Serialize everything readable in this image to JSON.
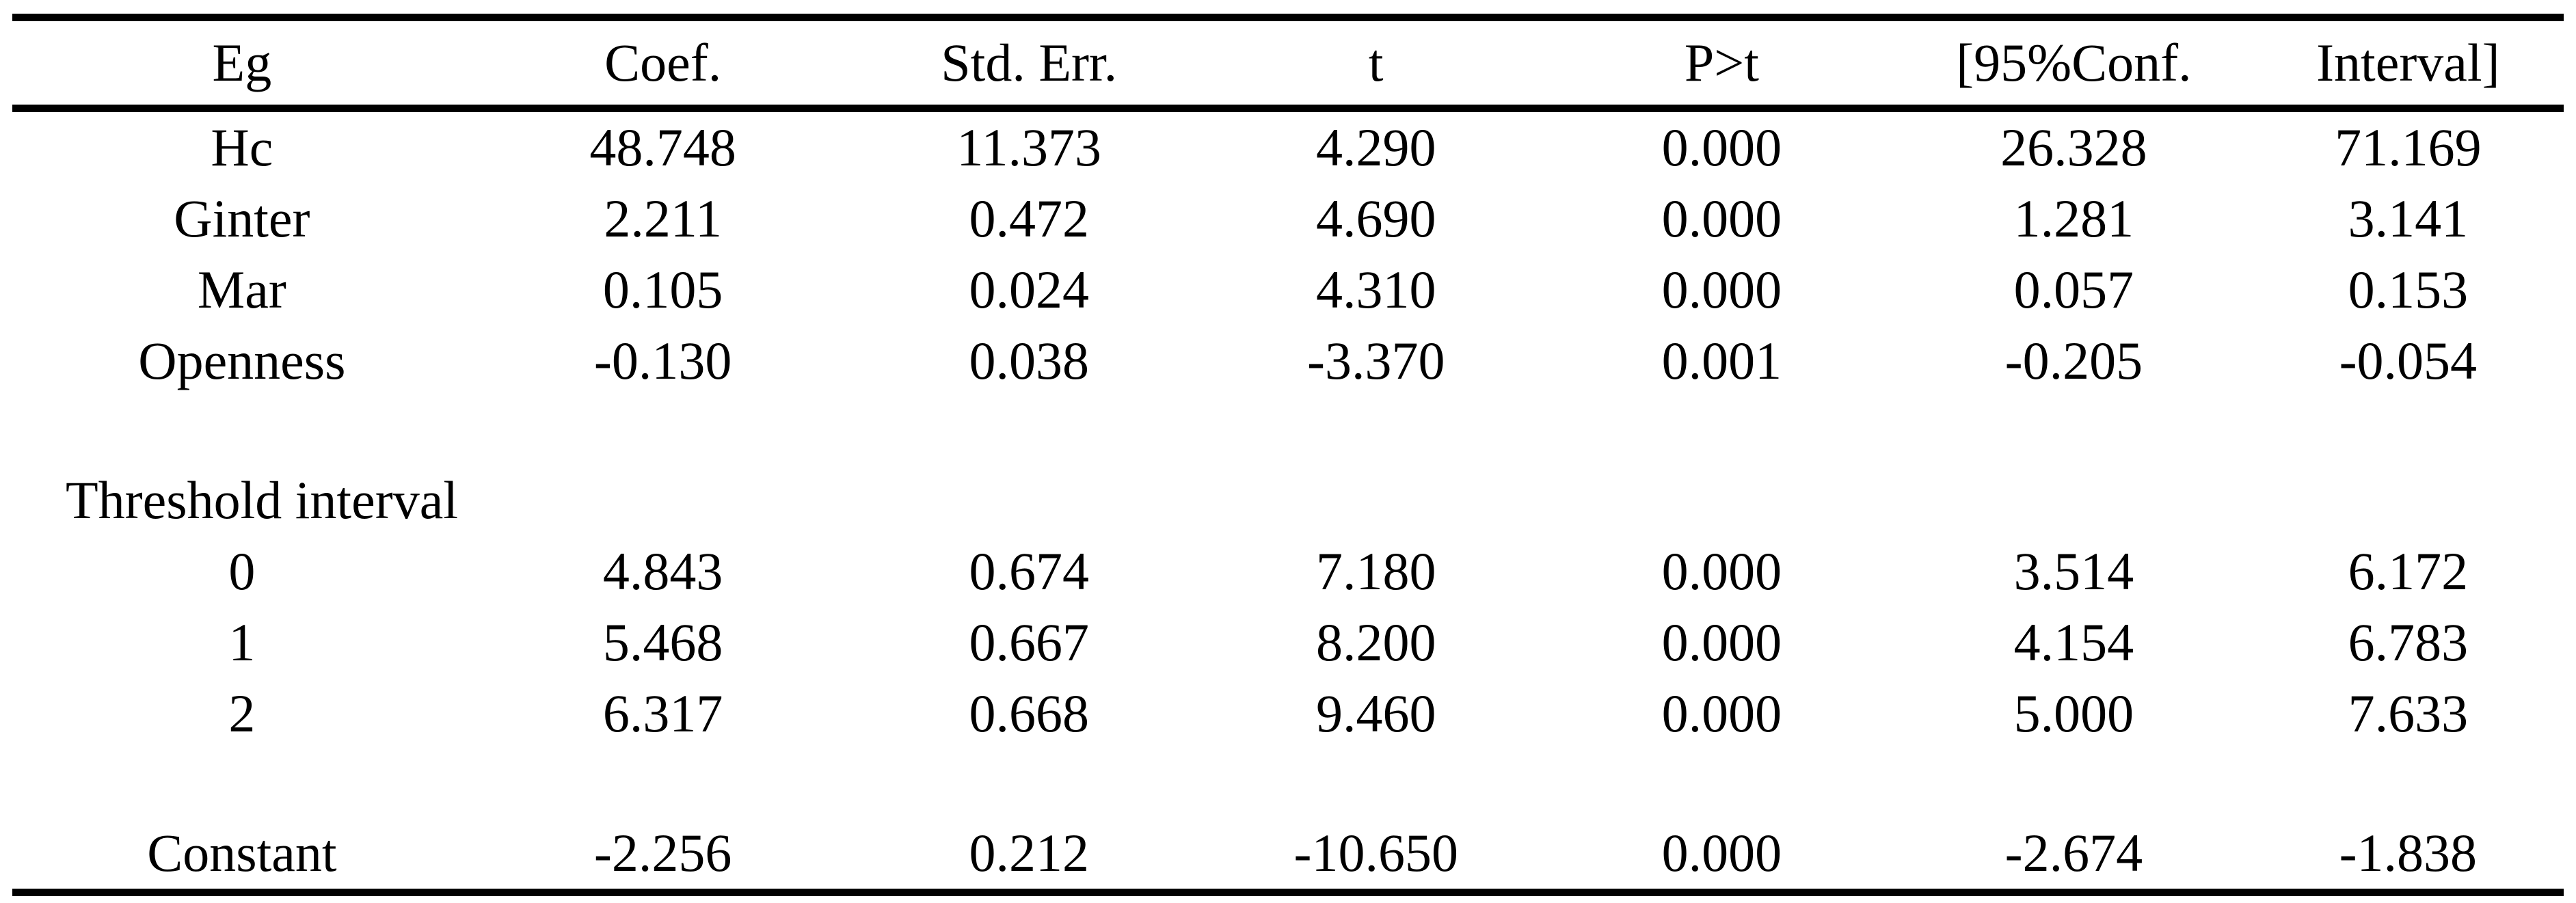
{
  "page": {
    "background": "#ffffff",
    "text_color": "#000000",
    "rule_color": "#000000"
  },
  "table": {
    "columns": [
      "Eg",
      "Coef.",
      "Std. Err.",
      "t",
      "P>t",
      "[95%Conf.",
      "Interval]"
    ],
    "rows": [
      {
        "style": "data",
        "cells": [
          "Hc",
          "48.748",
          "11.373",
          "4.290",
          "0.000",
          "26.328",
          "71.169"
        ]
      },
      {
        "style": "data",
        "cells": [
          "Ginter",
          "2.211",
          "0.472",
          "4.690",
          "0.000",
          "1.281",
          "3.141"
        ]
      },
      {
        "style": "data",
        "cells": [
          "Mar",
          "0.105",
          "0.024",
          "4.310",
          "0.000",
          "0.057",
          "0.153"
        ]
      },
      {
        "style": "data",
        "cells": [
          "Openness",
          "-0.130",
          "0.038",
          "-3.370",
          "0.001",
          "-0.205",
          "-0.054"
        ]
      },
      {
        "style": "blank",
        "cells": [
          "",
          "",
          "",
          "",
          "",
          "",
          ""
        ]
      },
      {
        "style": "section",
        "cells": [
          "Threshold interval",
          "",
          "",
          "",
          "",
          "",
          ""
        ]
      },
      {
        "style": "data",
        "cells": [
          "0",
          "4.843",
          "0.674",
          "7.180",
          "0.000",
          "3.514",
          "6.172"
        ]
      },
      {
        "style": "data",
        "cells": [
          "1",
          "5.468",
          "0.667",
          "8.200",
          "0.000",
          "4.154",
          "6.783"
        ]
      },
      {
        "style": "data",
        "cells": [
          "2",
          "6.317",
          "0.668",
          "9.460",
          "0.000",
          "5.000",
          "7.633"
        ]
      },
      {
        "style": "blank",
        "cells": [
          "",
          "",
          "",
          "",
          "",
          "",
          ""
        ]
      },
      {
        "style": "data",
        "cells": [
          "Constant",
          "-2.256",
          "0.212",
          "-10.650",
          "0.000",
          "-2.674",
          "-1.838"
        ]
      }
    ]
  }
}
